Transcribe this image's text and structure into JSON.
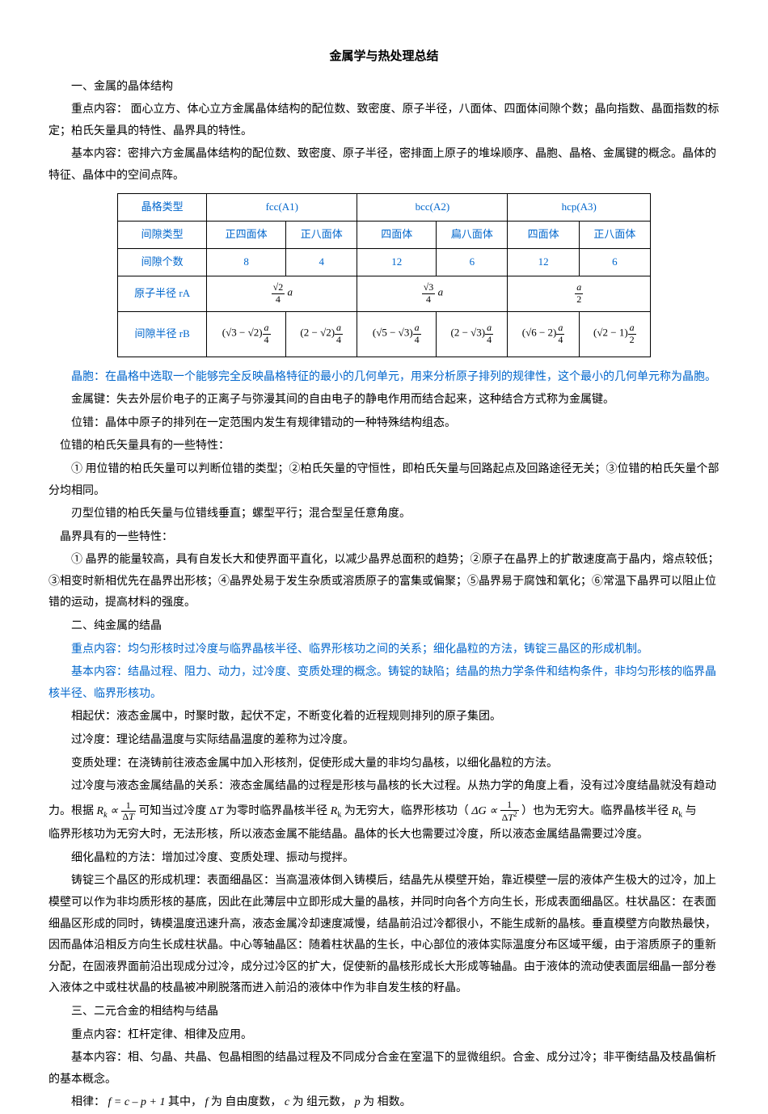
{
  "title": "金属学与热处理总结",
  "s1_h": "一、金属的晶体结构",
  "s1_p1": "重点内容： 面心立方、体心立方金属晶体结构的配位数、致密度、原子半径，八面体、四面体间隙个数；晶向指数、晶面指数的标定；柏氏矢量具的特性、晶界具的特性。",
  "s1_p2": "基本内容：密排六方金属晶体结构的配位数、致密度、原子半径，密排面上原子的堆垛顺序、晶胞、晶格、金属键的概念。晶体的特征、晶体中的空间点阵。",
  "table": {
    "rows": [
      [
        "晶格类型",
        "fcc(A1)",
        "bcc(A2)",
        "hcp(A3)"
      ],
      [
        "间隙类型",
        "正四面体",
        "正八面体",
        "四面体",
        "扁八面体",
        "四面体",
        "正八面体"
      ],
      [
        "间隙个数",
        "8",
        "4",
        "12",
        "6",
        "12",
        "6"
      ]
    ],
    "atom_radius_label": "原子半径 rA",
    "interstice_radius_label": "间隙半径 rB"
  },
  "p_cell": "晶胞：在晶格中选取一个能够完全反映晶格特征的最小的几何单元，用来分析原子排列的规律性，这个最小的几何单元称为晶胞。",
  "p_bond": "金属键：失去外层价电子的正离子与弥漫其间的自由电子的静电作用而结合起来，这种结合方式称为金属键。",
  "p_dislocation": "位错：晶体中原子的排列在一定范围内发生有规律错动的一种特殊结构组态。",
  "p_burgers_h": "位错的柏氏矢量具有的一些特性：",
  "p_burgers_1": "① 用位错的柏氏矢量可以判断位错的类型；②柏氏矢量的守恒性，即柏氏矢量与回路起点及回路途径无关；③位错的柏氏矢量个部分均相同。",
  "p_burgers_2": "刃型位错的柏氏矢量与位错线垂直；螺型平行；混合型呈任意角度。",
  "p_gb_h": "晶界具有的一些特性：",
  "p_gb_1": "① 晶界的能量较高，具有自发长大和使界面平直化，以减少晶界总面积的趋势；②原子在晶界上的扩散速度高于晶内，熔点较低；③相变时新相优先在晶界出形核；④晶界处易于发生杂质或溶质原子的富集或偏聚；⑤晶界易于腐蚀和氧化；⑥常温下晶界可以阻止位错的运动，提高材料的强度。",
  "s2_h": "二、纯金属的结晶",
  "s2_p1": "重点内容：均匀形核时过冷度与临界晶核半径、临界形核功之间的关系；细化晶粒的方法，铸锭三晶区的形成机制。",
  "s2_p2": "基本内容：结晶过程、阻力、动力，过冷度、变质处理的概念。铸锭的缺陷；结晶的热力学条件和结构条件，非均匀形核的临界晶核半径、临界形核功。",
  "s2_p3": "相起伏：液态金属中，时聚时散，起伏不定，不断变化着的近程规则排列的原子集团。",
  "s2_p4": "过冷度：理论结晶温度与实际结晶温度的差称为过冷度。",
  "s2_p5": "变质处理：在浇铸前往液态金属中加入形核剂，促使形成大量的非均匀晶核，以细化晶粒的方法。",
  "s2_p6a": "过冷度与液态金属结晶的关系：液态金属结晶的过程是形核与晶核的长大过程。从热力学的角度上看，没有过冷度结晶就没有趋动",
  "s2_p6b_1": "力。根据 ",
  "s2_p6b_2": " 可知当过冷度 Δ",
  "s2_p6b_3": " 为零时临界晶核半径 ",
  "s2_p6b_4": "为无穷大，临界形核功（ ",
  "s2_p6b_5": " ）也为无穷大。临界晶核半径 ",
  "s2_p6b_6": "与",
  "s2_p6c": "临界形核功为无穷大时，无法形核，所以液态金属不能结晶。晶体的长大也需要过冷度，所以液态金属结晶需要过冷度。",
  "s2_p7": "细化晶粒的方法：增加过冷度、变质处理、振动与搅拌。",
  "s2_p8": "铸锭三个晶区的形成机理：表面细晶区：当高温液体倒入铸模后，结晶先从模壁开始，靠近模壁一层的液体产生极大的过冷，加上模壁可以作为非均质形核的基底，因此在此薄层中立即形成大量的晶核，并同时向各个方向生长，形成表面细晶区。柱状晶区：在表面细晶区形成的同时，铸模温度迅速升高，液态金属冷却速度减慢，结晶前沿过冷都很小，不能生成新的晶核。垂直模壁方向散热最快，因而晶体沿相反方向生长成柱状晶。中心等轴晶区：随着柱状晶的生长，中心部位的液体实际温度分布区域平缓，由于溶质原子的重新分配，在固液界面前沿出现成分过冷，成分过冷区的扩大，促使新的晶核形成长大形成等轴晶。由于液体的流动使表面层细晶一部分卷入液体之中或柱状晶的枝晶被冲刷脱落而进入前沿的液体中作为非自发生核的籽晶。",
  "s3_h": "三、二元合金的相结构与结晶",
  "s3_p1": "重点内容：杠杆定律、相律及应用。",
  "s3_p2": "基本内容：相、匀晶、共晶、包晶相图的结晶过程及不同成分合金在室温下的显微组织。合金、成分过冷；非平衡结晶及枝晶偏析的基本概念。",
  "s3_p3a": "相律：",
  "s3_p3b": " 其中，",
  "s3_p3c": " 为 自由度数，",
  "s3_p3d": " 为 组元数，",
  "s3_p3e": " 为 相数。",
  "math": {
    "f": "f",
    "c": "c",
    "p": "p",
    "T": "T",
    "Rk": "R",
    "k_sub": "k",
    "formula_phase": "f = c – p + 1"
  }
}
